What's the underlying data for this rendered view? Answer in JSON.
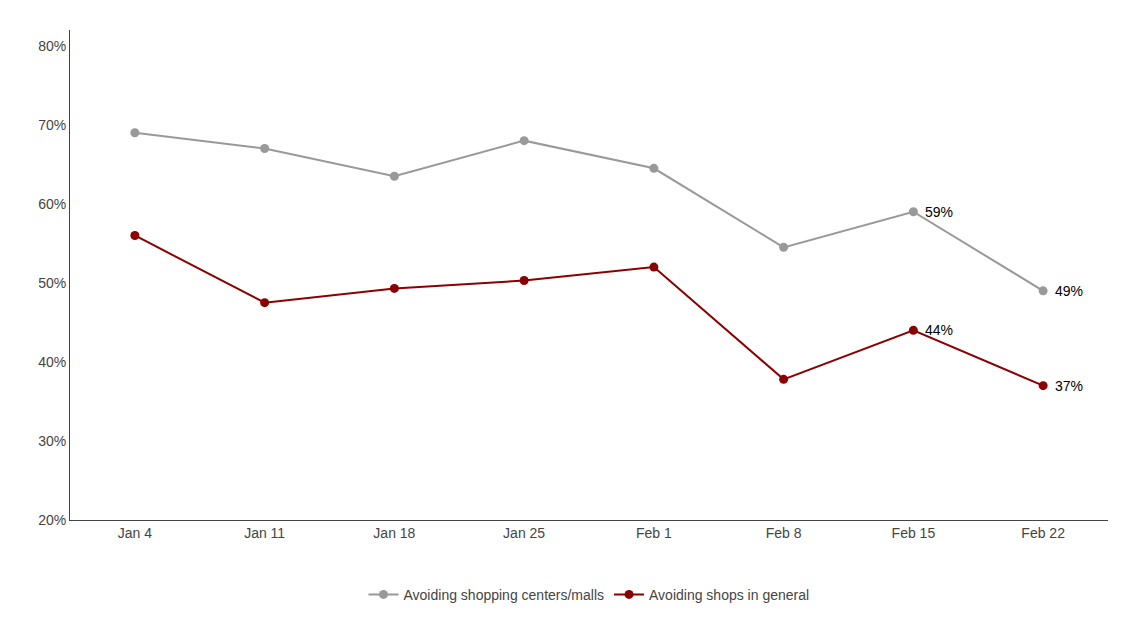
{
  "chart_data": {
    "type": "line",
    "categories": [
      "Jan 4",
      "Jan 11",
      "Jan 18",
      "Jan 25",
      "Feb 1",
      "Feb 8",
      "Feb 15",
      "Feb 22"
    ],
    "series": [
      {
        "name": "Avoiding shopping centers/malls",
        "color": "#999999",
        "marker": "circle",
        "values": [
          0.69,
          0.67,
          0.635,
          0.68,
          0.645,
          0.545,
          0.59,
          0.49
        ],
        "value_labels": [
          null,
          null,
          null,
          null,
          null,
          null,
          "59%",
          "49%"
        ]
      },
      {
        "name": "Avoiding shops in general",
        "color": "#8B0000",
        "marker": "circle",
        "values": [
          0.56,
          0.475,
          0.493,
          0.503,
          0.52,
          0.378,
          0.44,
          0.37
        ],
        "value_labels": [
          null,
          null,
          null,
          null,
          null,
          null,
          "44%",
          "37%"
        ]
      }
    ],
    "ylim": [
      0.2,
      0.82
    ],
    "yticks": [
      {
        "value": 0.2,
        "label": "20%"
      },
      {
        "value": 0.3,
        "label": "30%"
      },
      {
        "value": 0.4,
        "label": "40%"
      },
      {
        "value": 0.5,
        "label": "50%"
      },
      {
        "value": 0.6,
        "label": "60%"
      },
      {
        "value": 0.7,
        "label": "70%"
      },
      {
        "value": 0.8,
        "label": "80%"
      }
    ],
    "grid": false,
    "legend": "bottom"
  }
}
